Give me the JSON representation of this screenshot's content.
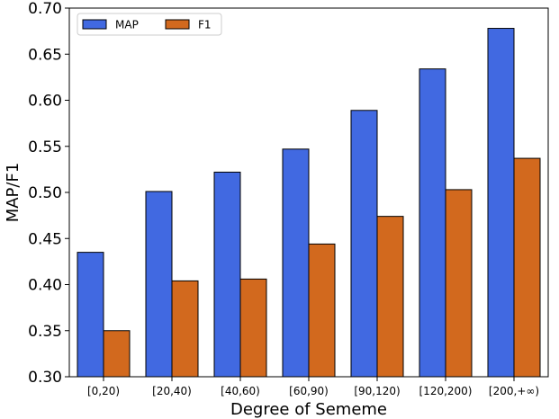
{
  "chart_data": {
    "type": "bar",
    "categories": [
      "[0,20)",
      "[20,40)",
      "[40,60)",
      "[60,90)",
      "[90,120)",
      "[120,200)",
      "[200,+∞)"
    ],
    "series": [
      {
        "name": "MAP",
        "color": "#4169E1",
        "values": [
          0.435,
          0.501,
          0.522,
          0.547,
          0.589,
          0.634,
          0.678
        ]
      },
      {
        "name": "F1",
        "color": "#D2691E",
        "values": [
          0.35,
          0.404,
          0.406,
          0.444,
          0.474,
          0.503,
          0.537
        ]
      }
    ],
    "xlabel": "Degree of Sememe",
    "ylabel": "MAP/F1",
    "ylim": [
      0.3,
      0.7
    ],
    "yticks": [
      "0.30",
      "0.35",
      "0.40",
      "0.45",
      "0.50",
      "0.55",
      "0.60",
      "0.65",
      "0.70"
    ],
    "grid": false,
    "legend": {
      "placement": "top-left",
      "columns": 2
    }
  }
}
